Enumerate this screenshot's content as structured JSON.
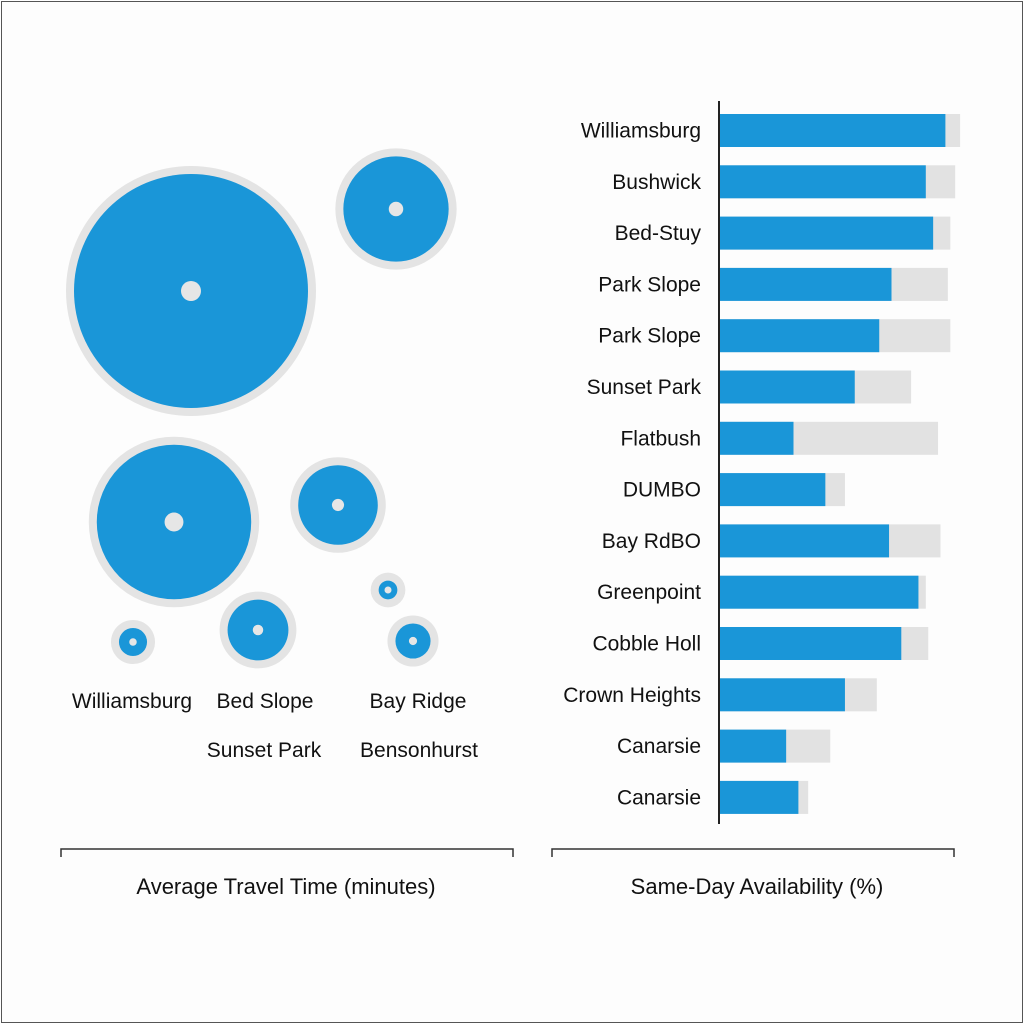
{
  "colors": {
    "primary": "#1a96d8",
    "secondary": "#e2e2e2",
    "ring": "#e4e4e4",
    "axis": "#222222"
  },
  "chart_data": [
    {
      "type": "bubble",
      "xlabel": "Average Travel Time (minutes)",
      "bubbles": [
        {
          "relative_size": 1.0
        },
        {
          "relative_size": 0.45
        },
        {
          "relative_size": 0.66
        },
        {
          "relative_size": 0.34
        },
        {
          "relative_size": 0.12
        },
        {
          "relative_size": 0.26
        },
        {
          "relative_size": 0.08
        },
        {
          "relative_size": 0.15
        }
      ],
      "labels": [
        "Williamsburg",
        "Bed Slope",
        "Bay Ridge",
        "Sunset Park",
        "Bensonhurst"
      ]
    },
    {
      "type": "bar",
      "orientation": "horizontal",
      "xlabel": "Same-Day Availability (%)",
      "xlim": [
        0,
        100
      ],
      "grid": false,
      "categories": [
        "Williamsburg",
        "Bushwick",
        "Bed-Stuy",
        "Park Slope",
        "Park Slope",
        "Sunset Park",
        "Flatbush",
        "DUMBO",
        "Bay RdBO",
        "Greenpoint",
        "Cobble Holl",
        "Crown Heights",
        "Canarsie",
        "Canarsie"
      ],
      "series": [
        {
          "values": [
            92,
            84,
            87,
            70,
            65,
            55,
            30,
            43,
            69,
            81,
            74,
            51,
            27,
            32
          ]
        },
        {
          "values": [
            98,
            96,
            94,
            93,
            94,
            78,
            89,
            51,
            90,
            84,
            85,
            64,
            45,
            36
          ]
        }
      ]
    }
  ]
}
